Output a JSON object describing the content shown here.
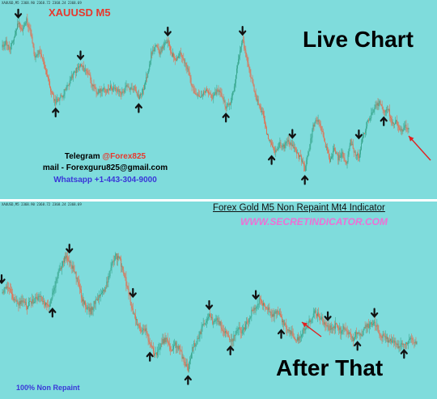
{
  "chart_data": [
    {
      "type": "candlestick",
      "title": "XAUUSD M5",
      "label": "Live Chart",
      "header": "XAUUSD,M5  2368.90 2368.72 2368.24 2368.69",
      "colors": {
        "background": "#7fdcdc",
        "up": "#3aa88f",
        "down": "#e07052",
        "signal": "#111111",
        "annotation_arrow": "#e02020"
      },
      "price_path": [
        2391,
        2394,
        2390,
        2396,
        2403,
        2399,
        2404,
        2398,
        2386,
        2389,
        2385,
        2378,
        2370,
        2366,
        2368,
        2370,
        2374,
        2378,
        2381,
        2383,
        2381,
        2379,
        2373,
        2370,
        2372,
        2371,
        2373,
        2372,
        2371,
        2370,
        2373,
        2372,
        2373,
        2368,
        2371,
        2378,
        2388,
        2392,
        2389,
        2392,
        2394,
        2388,
        2386,
        2389,
        2384,
        2380,
        2372,
        2370,
        2368,
        2371,
        2370,
        2368,
        2372,
        2369,
        2364,
        2365,
        2373,
        2387,
        2395,
        2386,
        2378,
        2370,
        2364,
        2360,
        2350,
        2346,
        2343,
        2347,
        2345,
        2348,
        2346,
        2343,
        2340,
        2335,
        2344,
        2355,
        2358,
        2353,
        2346,
        2338,
        2344,
        2340,
        2342,
        2337,
        2348,
        2342,
        2341,
        2350,
        2356,
        2360,
        2364,
        2366,
        2362,
        2363,
        2356,
        2357,
        2352,
        2355,
        2354
      ],
      "signals": [
        {
          "type": "sell",
          "index": 4
        },
        {
          "type": "buy",
          "index": 13
        },
        {
          "type": "sell",
          "index": 19
        },
        {
          "type": "buy",
          "index": 33
        },
        {
          "type": "sell",
          "index": 40
        },
        {
          "type": "buy",
          "index": 54
        },
        {
          "type": "sell",
          "index": 58
        },
        {
          "type": "buy",
          "index": 65
        },
        {
          "type": "sell",
          "index": 70
        },
        {
          "type": "buy",
          "index": 73
        },
        {
          "type": "sell",
          "index": 86
        },
        {
          "type": "buy",
          "index": 92
        }
      ]
    },
    {
      "type": "candlestick",
      "title": "Forex Gold M5 Non Repaint Mt4 Indicator",
      "label": "After That",
      "header": "XAUUSD,M5  2368.90 2368.72 2368.24 2368.69",
      "colors": {
        "background": "#7fdcdc",
        "up": "#3aa88f",
        "down": "#e07052",
        "signal": "#111111",
        "annotation_arrow": "#e02020"
      },
      "price_path": [
        2371,
        2374,
        2372,
        2369,
        2367,
        2368,
        2366,
        2368,
        2369,
        2370,
        2367,
        2366,
        2371,
        2377,
        2382,
        2386,
        2384,
        2381,
        2376,
        2369,
        2366,
        2364,
        2368,
        2370,
        2372,
        2376,
        2383,
        2386,
        2384,
        2378,
        2371,
        2364,
        2359,
        2356,
        2357,
        2351,
        2347,
        2348,
        2352,
        2353,
        2348,
        2351,
        2349,
        2344,
        2341,
        2350,
        2352,
        2356,
        2360,
        2363,
        2359,
        2361,
        2358,
        2355,
        2352,
        2354,
        2357,
        2356,
        2360,
        2364,
        2366,
        2369,
        2366,
        2365,
        2362,
        2364,
        2361,
        2358,
        2356,
        2354,
        2353,
        2356,
        2358,
        2361,
        2364,
        2362,
        2360,
        2358,
        2357,
        2359,
        2356,
        2358,
        2355,
        2353,
        2356,
        2355,
        2358,
        2359,
        2360,
        2356,
        2354,
        2353,
        2352,
        2351,
        2350,
        2351,
        2352,
        2353,
        2352
      ],
      "signals": [
        {
          "type": "sell",
          "index": 0
        },
        {
          "type": "buy",
          "index": 12
        },
        {
          "type": "sell",
          "index": 16
        },
        {
          "type": "sell",
          "index": 31
        },
        {
          "type": "buy",
          "index": 35
        },
        {
          "type": "buy",
          "index": 44
        },
        {
          "type": "sell",
          "index": 49
        },
        {
          "type": "buy",
          "index": 54
        },
        {
          "type": "sell",
          "index": 60
        },
        {
          "type": "buy",
          "index": 66
        },
        {
          "type": "sell",
          "index": 77
        },
        {
          "type": "buy",
          "index": 84
        },
        {
          "type": "sell",
          "index": 88
        },
        {
          "type": "buy",
          "index": 95
        }
      ]
    }
  ],
  "top_panel": {
    "symbol_title": "XAUUSD M5",
    "big_label": "Live Chart",
    "header_text": "XAUUSD,M5  2368.90 2368.72 2368.24 2368.69",
    "telegram_label": "Telegram ",
    "telegram_handle": "@Forex825",
    "mail": "mail - Forexguru825@gmail.com",
    "whatsapp": "Whatsapp +1-443-304-9000"
  },
  "bottom_panel": {
    "indicator_title": "Forex Gold M5 Non Repaint Mt4 Indicator",
    "website": "WWW.SECRETINDICATOR.COM",
    "big_label": "After That",
    "header_text": "XAUUSD,M5  2368.90 2368.72 2368.24 2368.69",
    "non_repaint": "100% Non Repaint"
  }
}
